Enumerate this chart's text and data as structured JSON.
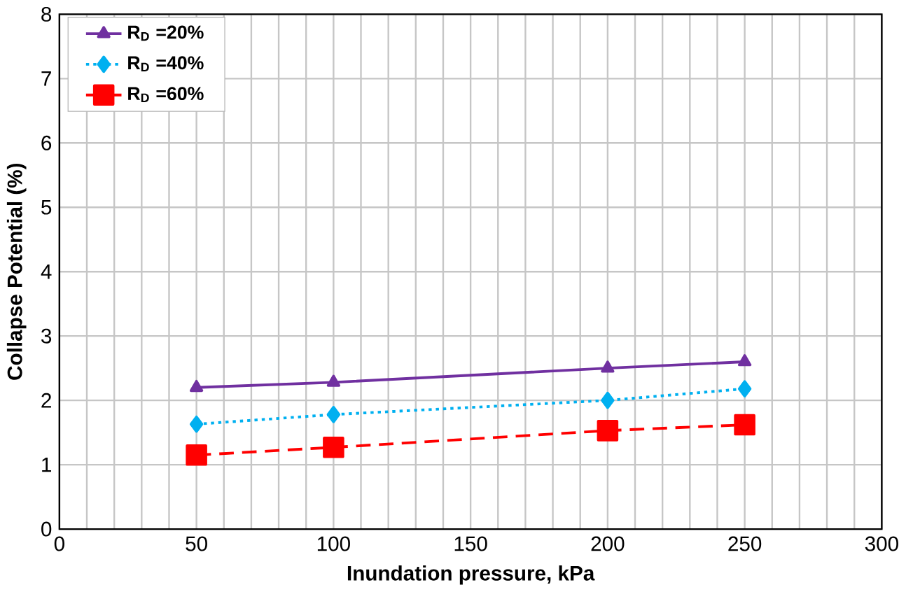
{
  "chart_data": {
    "type": "line",
    "xlabel": "Inundation pressure, kPa",
    "ylabel": "Collapse Potential (%)",
    "x": [
      50,
      100,
      200,
      250
    ],
    "series": [
      {
        "name": "R$_{D}$ =20%",
        "color": "#7030a0",
        "values": [
          2.2,
          2.28,
          2.5,
          2.6
        ],
        "marker": "triangle",
        "line_style": "solid"
      },
      {
        "name": "R$_{D}$ =40%",
        "color": "#00b0f0",
        "values": [
          1.63,
          1.78,
          2.0,
          2.18
        ],
        "marker": "diamond",
        "line_style": "dotted"
      },
      {
        "name": "R$_{D}$ =60%",
        "color": "#ff0000",
        "values": [
          1.15,
          1.27,
          1.53,
          1.62
        ],
        "marker": "square",
        "line_style": "dashed"
      }
    ],
    "xlim": [
      0,
      300
    ],
    "xticks": [
      0,
      50,
      100,
      150,
      200,
      250,
      300
    ],
    "ylim": [
      0,
      8
    ],
    "yticks": [
      0,
      1,
      2,
      3,
      4,
      5,
      6,
      7,
      8
    ],
    "grid": true,
    "legend": "top left"
  }
}
